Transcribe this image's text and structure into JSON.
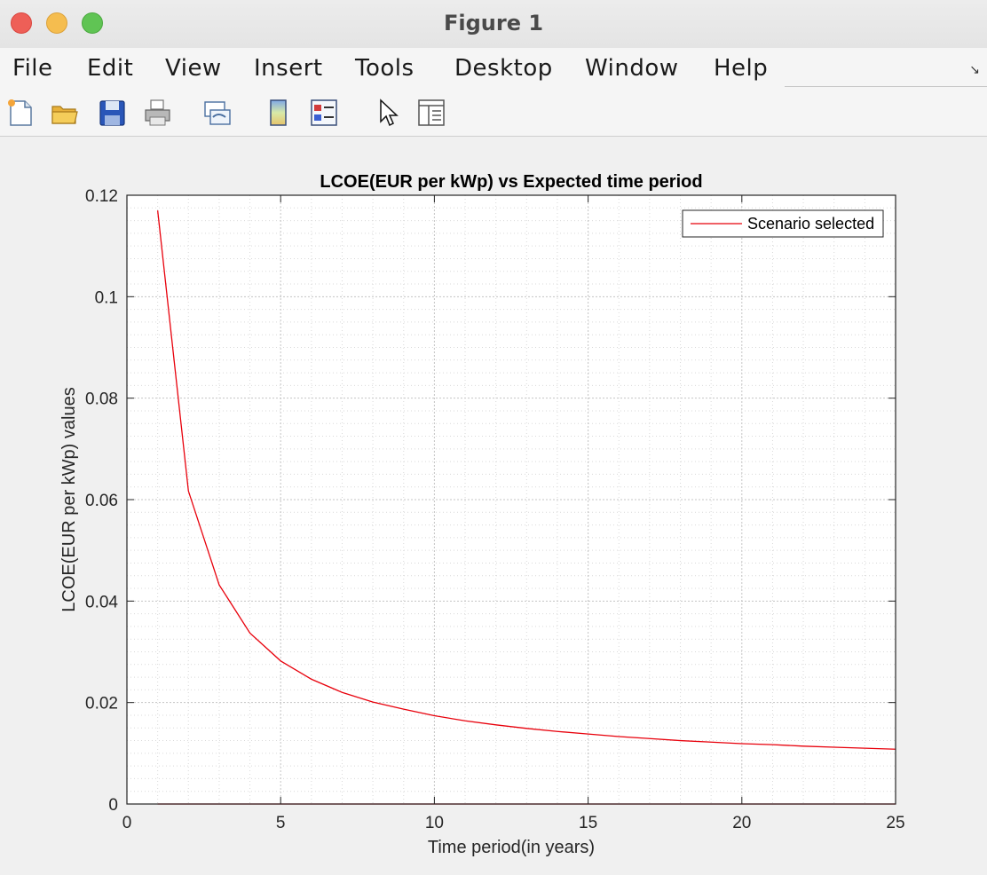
{
  "window": {
    "title": "Figure 1"
  },
  "menu": {
    "items": [
      "File",
      "Edit",
      "View",
      "Insert",
      "Tools",
      "Desktop",
      "Window",
      "Help"
    ]
  },
  "toolbar": {
    "buttons": [
      "new-figure-icon",
      "open-file-icon",
      "save-icon",
      "print-icon",
      "link-plot-icon",
      "colorbar-icon",
      "legend-icon",
      "edit-plot-pointer-icon",
      "property-inspector-icon"
    ]
  },
  "chart_data": {
    "type": "line",
    "title": "LCOE(EUR per kWp) vs Expected time period",
    "xlabel": "Time period(in years)",
    "ylabel": "LCOE(EUR per kWp) values",
    "xlim": [
      0,
      25
    ],
    "ylim": [
      0,
      0.12
    ],
    "xticks": [
      "0",
      "5",
      "10",
      "15",
      "20",
      "25"
    ],
    "yticks": [
      "0",
      "0.02",
      "0.04",
      "0.06",
      "0.08",
      "0.1",
      "0.12"
    ],
    "grid": true,
    "minor_grid": true,
    "legend_position": "top-right",
    "series": [
      {
        "name": "Scenario selected",
        "color": "#e8000b",
        "x": [
          1,
          2,
          3,
          4,
          5,
          6,
          7,
          8,
          9,
          10,
          11,
          12,
          13,
          14,
          15,
          16,
          17,
          18,
          19,
          20,
          21,
          22,
          23,
          24,
          25
        ],
        "y": [
          0.117,
          0.0617,
          0.0432,
          0.0337,
          0.0282,
          0.0246,
          0.022,
          0.0201,
          0.0187,
          0.0174,
          0.0164,
          0.0156,
          0.0149,
          0.0143,
          0.0138,
          0.0133,
          0.0129,
          0.0125,
          0.0122,
          0.0119,
          0.0117,
          0.0114,
          0.0112,
          0.011,
          0.0108
        ]
      },
      {
        "color": "#e8000b",
        "x": [
          1,
          25
        ],
        "y": [
          0,
          0
        ]
      }
    ]
  }
}
